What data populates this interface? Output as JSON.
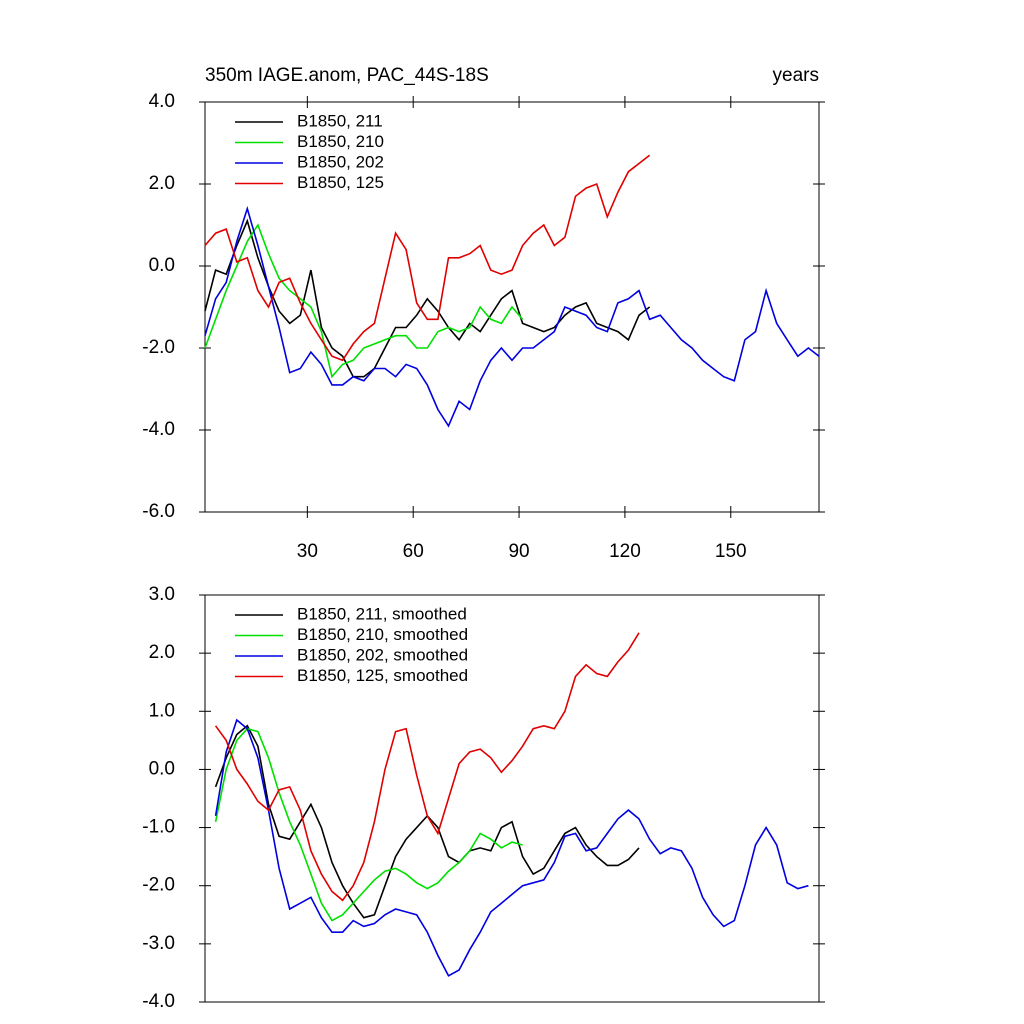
{
  "chart_data": [
    {
      "type": "line",
      "title": "350m IAGE.anom, PAC_44S-18S",
      "right_title": "years",
      "legend": "upper left",
      "xlim": [
        1,
        175
      ],
      "xticks": [
        30,
        60,
        90,
        120,
        150
      ],
      "ylim": [
        -6,
        4
      ],
      "yticks": [
        {
          "value": -6,
          "label": "-6.0"
        },
        {
          "value": -4,
          "label": "-4.0"
        },
        {
          "value": -2,
          "label": "-2.0"
        },
        {
          "value": 0,
          "label": "0.0"
        },
        {
          "value": 2,
          "label": "2.0"
        },
        {
          "value": 4,
          "label": "4.0"
        }
      ],
      "x": [
        1,
        4,
        7,
        10,
        13,
        16,
        19,
        22,
        25,
        28,
        31,
        34,
        37,
        40,
        43,
        46,
        49,
        52,
        55,
        58,
        61,
        64,
        67,
        70,
        73,
        76,
        79,
        82,
        85,
        88,
        91,
        94,
        97,
        100,
        103,
        106,
        109,
        112,
        115,
        118,
        121,
        124,
        127,
        130,
        133,
        136,
        139,
        142,
        145,
        148,
        151,
        154,
        157,
        160,
        163,
        166,
        169,
        172,
        175
      ],
      "series": [
        {
          "name": "B1850, 211",
          "color": "#000000",
          "values": [
            -1.1,
            -0.1,
            -0.2,
            0.5,
            1.1,
            0.2,
            -0.5,
            -1.1,
            -1.4,
            -1.2,
            -0.1,
            -1.5,
            -2.0,
            -2.2,
            -2.7,
            -2.7,
            -2.5,
            -2.0,
            -1.5,
            -1.5,
            -1.2,
            -0.8,
            -1.1,
            -1.5,
            -1.8,
            -1.4,
            -1.6,
            -1.2,
            -0.8,
            -0.6,
            -1.4,
            -1.5,
            -1.6,
            -1.5,
            -1.2,
            -1.0,
            -0.9,
            -1.4,
            -1.5,
            -1.6,
            -1.8,
            -1.2,
            -1.0,
            null,
            null,
            null,
            null,
            null,
            null,
            null,
            null,
            null,
            null,
            null,
            null,
            null,
            null,
            null,
            null
          ]
        },
        {
          "name": "B1850, 210",
          "color": "#00e000",
          "values": [
            -2.0,
            -1.3,
            -0.6,
            0.0,
            0.6,
            1.0,
            0.3,
            -0.3,
            -0.6,
            -0.8,
            -1.0,
            -1.6,
            -2.7,
            -2.4,
            -2.3,
            -2.0,
            -1.9,
            -1.8,
            -1.7,
            -1.7,
            -2.0,
            -2.0,
            -1.6,
            -1.5,
            -1.6,
            -1.5,
            -1.0,
            -1.3,
            -1.4,
            -1.0,
            -1.3,
            null,
            null,
            null,
            null,
            null,
            null,
            null,
            null,
            null,
            null,
            null,
            null,
            null,
            null,
            null,
            null,
            null,
            null,
            null,
            null,
            null,
            null,
            null,
            null,
            null,
            null,
            null,
            null
          ]
        },
        {
          "name": "B1850, 202",
          "color": "#0000e0",
          "values": [
            -1.7,
            -0.8,
            -0.4,
            0.6,
            1.4,
            0.5,
            -0.5,
            -1.5,
            -2.6,
            -2.5,
            -2.1,
            -2.4,
            -2.9,
            -2.9,
            -2.7,
            -2.8,
            -2.5,
            -2.5,
            -2.7,
            -2.4,
            -2.5,
            -2.9,
            -3.5,
            -3.9,
            -3.3,
            -3.5,
            -2.8,
            -2.3,
            -2.0,
            -2.3,
            -2.0,
            -2.0,
            -1.8,
            -1.6,
            -1.0,
            -1.1,
            -1.2,
            -1.5,
            -1.6,
            -0.9,
            -0.8,
            -0.6,
            -1.3,
            -1.2,
            -1.5,
            -1.8,
            -2.0,
            -2.3,
            -2.5,
            -2.7,
            -2.8,
            -1.8,
            -1.6,
            -0.6,
            -1.4,
            -1.8,
            -2.2,
            -2.0,
            -2.2
          ]
        },
        {
          "name": "B1850, 125",
          "color": "#e00000",
          "values": [
            0.5,
            0.8,
            0.9,
            0.1,
            0.2,
            -0.6,
            -1.0,
            -0.4,
            -0.3,
            -0.9,
            -1.4,
            -1.8,
            -2.2,
            -2.3,
            -1.9,
            -1.6,
            -1.4,
            -0.3,
            0.8,
            0.4,
            -0.9,
            -1.3,
            -1.3,
            0.2,
            0.2,
            0.3,
            0.5,
            -0.1,
            -0.2,
            -0.1,
            0.5,
            0.8,
            1.0,
            0.5,
            0.7,
            1.7,
            1.9,
            2.0,
            1.2,
            1.8,
            2.3,
            2.5,
            2.7,
            null,
            null,
            null,
            null,
            null,
            null,
            null,
            null,
            null,
            null,
            null,
            null,
            null,
            null,
            null,
            null
          ]
        }
      ]
    },
    {
      "type": "line",
      "legend": "upper left",
      "xlim": [
        1,
        175
      ],
      "ylim": [
        -4,
        3
      ],
      "yticks": [
        {
          "value": -4,
          "label": "-4.0"
        },
        {
          "value": -3,
          "label": "-3.0"
        },
        {
          "value": -2,
          "label": "-2.0"
        },
        {
          "value": -1,
          "label": "-1.0"
        },
        {
          "value": 0,
          "label": "0.0"
        },
        {
          "value": 1,
          "label": "1.0"
        },
        {
          "value": 2,
          "label": "2.0"
        },
        {
          "value": 3,
          "label": "3.0"
        }
      ],
      "x": [
        4,
        7,
        10,
        13,
        16,
        19,
        22,
        25,
        28,
        31,
        34,
        37,
        40,
        43,
        46,
        49,
        52,
        55,
        58,
        61,
        64,
        67,
        70,
        73,
        76,
        79,
        82,
        85,
        88,
        91,
        94,
        97,
        100,
        103,
        106,
        109,
        112,
        115,
        118,
        121,
        124,
        127,
        130,
        133,
        136,
        139,
        142,
        145,
        148,
        151,
        154,
        157,
        160,
        163,
        166,
        169,
        172,
        175
      ],
      "series": [
        {
          "name": "B1850, 211, smoothed",
          "color": "#000000",
          "values": [
            -0.3,
            0.2,
            0.6,
            0.75,
            0.4,
            -0.6,
            -1.15,
            -1.2,
            -0.9,
            -0.6,
            -1.0,
            -1.6,
            -2.0,
            -2.3,
            -2.55,
            -2.5,
            -2.0,
            -1.5,
            -1.2,
            -1.0,
            -0.8,
            -1.0,
            -1.5,
            -1.6,
            -1.4,
            -1.35,
            -1.4,
            -1.0,
            -0.9,
            -1.5,
            -1.8,
            -1.7,
            -1.4,
            -1.1,
            -1.0,
            -1.3,
            -1.5,
            -1.65,
            -1.65,
            -1.55,
            -1.35,
            null,
            null,
            null,
            null,
            null,
            null,
            null,
            null,
            null,
            null,
            null,
            null,
            null,
            null,
            null,
            null,
            null
          ]
        },
        {
          "name": "B1850, 210, smoothed",
          "color": "#00e000",
          "values": [
            -0.9,
            0.0,
            0.5,
            0.7,
            0.65,
            0.2,
            -0.4,
            -0.9,
            -1.3,
            -1.8,
            -2.3,
            -2.6,
            -2.5,
            -2.3,
            -2.1,
            -1.9,
            -1.75,
            -1.7,
            -1.8,
            -1.95,
            -2.05,
            -1.95,
            -1.75,
            -1.6,
            -1.4,
            -1.1,
            -1.2,
            -1.35,
            -1.25,
            -1.3,
            null,
            null,
            null,
            null,
            null,
            null,
            null,
            null,
            null,
            null,
            null,
            null,
            null,
            null,
            null,
            null,
            null,
            null,
            null,
            null,
            null,
            null,
            null,
            null,
            null,
            null,
            null,
            null
          ]
        },
        {
          "name": "B1850, 202, smoothed",
          "color": "#0000e0",
          "values": [
            -0.8,
            0.3,
            0.85,
            0.7,
            0.2,
            -0.7,
            -1.7,
            -2.4,
            -2.3,
            -2.2,
            -2.55,
            -2.8,
            -2.8,
            -2.6,
            -2.7,
            -2.65,
            -2.5,
            -2.4,
            -2.45,
            -2.5,
            -2.8,
            -3.2,
            -3.55,
            -3.45,
            -3.1,
            -2.8,
            -2.45,
            -2.3,
            -2.15,
            -2.0,
            -1.95,
            -1.9,
            -1.6,
            -1.15,
            -1.1,
            -1.4,
            -1.35,
            -1.1,
            -0.85,
            -0.7,
            -0.85,
            -1.2,
            -1.45,
            -1.35,
            -1.4,
            -1.7,
            -2.2,
            -2.5,
            -2.7,
            -2.6,
            -2.0,
            -1.3,
            -1.0,
            -1.3,
            -1.95,
            -2.05,
            -2.0,
            null
          ]
        },
        {
          "name": "B1850, 125, smoothed",
          "color": "#e00000",
          "values": [
            0.75,
            0.5,
            0.0,
            -0.25,
            -0.55,
            -0.7,
            -0.35,
            -0.3,
            -0.7,
            -1.4,
            -1.8,
            -2.1,
            -2.25,
            -2.0,
            -1.6,
            -0.9,
            0.0,
            0.65,
            0.7,
            -0.1,
            -0.8,
            -1.1,
            -0.5,
            0.1,
            0.3,
            0.35,
            0.2,
            -0.05,
            0.15,
            0.4,
            0.7,
            0.75,
            0.7,
            1.0,
            1.6,
            1.8,
            1.65,
            1.6,
            1.85,
            2.05,
            2.35,
            null,
            null,
            null,
            null,
            null,
            null,
            null,
            null,
            null,
            null,
            null,
            null,
            null,
            null,
            null,
            null,
            null
          ]
        }
      ]
    }
  ]
}
